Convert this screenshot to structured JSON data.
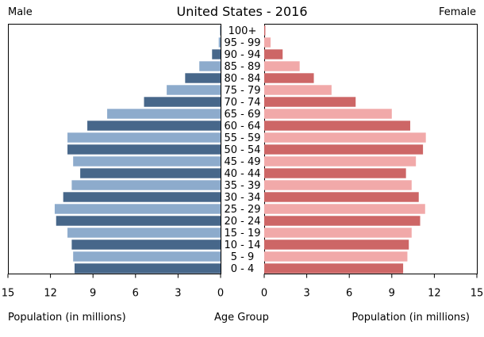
{
  "chart_data": {
    "type": "bar",
    "subtype": "population-pyramid",
    "title": "United States - 2016",
    "left_label": "Male",
    "right_label": "Female",
    "xlabel_left": "Population (in millions)",
    "xlabel_center": "Age Group",
    "xlabel_right": "Population (in millions)",
    "xlim": [
      0,
      15
    ],
    "xticks": [
      0,
      3,
      6,
      9,
      12,
      15
    ],
    "categories": [
      "100+",
      "95 - 99",
      "90 - 94",
      "85 - 89",
      "80 - 84",
      "75 - 79",
      "70 - 74",
      "65 - 69",
      "60 - 64",
      "55 - 59",
      "50 - 54",
      "45 - 49",
      "40 - 44",
      "35 - 39",
      "30 - 34",
      "25 - 29",
      "20 - 24",
      "15 - 19",
      "10 - 14",
      "5 - 9",
      "0 - 4"
    ],
    "series": [
      {
        "name": "Male",
        "values": [
          0.03,
          0.13,
          0.6,
          1.5,
          2.5,
          3.8,
          5.4,
          8.0,
          9.4,
          10.8,
          10.8,
          10.4,
          9.9,
          10.5,
          11.1,
          11.7,
          11.6,
          10.8,
          10.5,
          10.4,
          10.3
        ]
      },
      {
        "name": "Female",
        "values": [
          0.08,
          0.45,
          1.3,
          2.5,
          3.5,
          4.75,
          6.45,
          9.0,
          10.3,
          11.4,
          11.2,
          10.7,
          10.0,
          10.4,
          10.9,
          11.35,
          11.0,
          10.4,
          10.2,
          10.1,
          9.8
        ]
      }
    ],
    "colors": {
      "male_dark": "#47678a",
      "male_light": "#8dabcc",
      "female_dark": "#cd6666",
      "female_light": "#f1a9a9"
    }
  }
}
